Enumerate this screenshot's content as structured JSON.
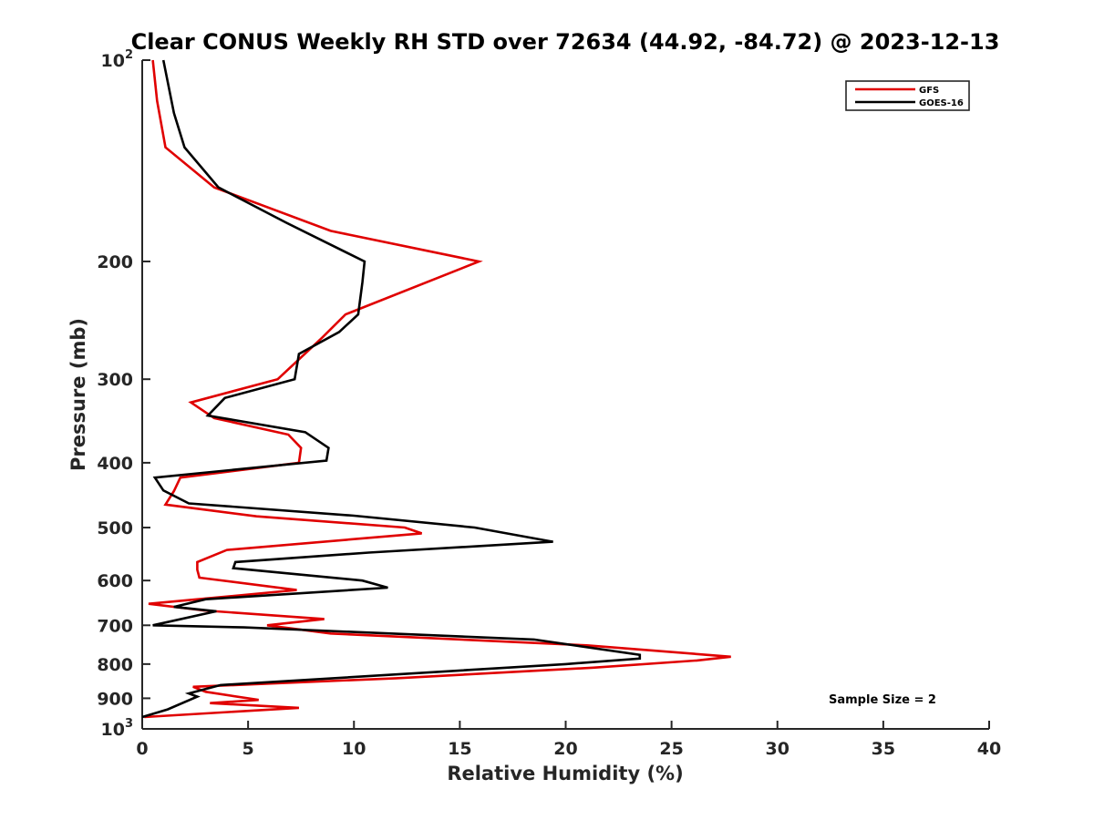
{
  "chart_data": {
    "type": "line",
    "title": "Clear CONUS Weekly RH STD over 72634 (44.92, -84.72) @ 2023-12-13",
    "xlabel": "Relative Humidity (%)",
    "ylabel": "Pressure (mb)",
    "xlim": [
      0,
      40
    ],
    "ylim": [
      100,
      1000
    ],
    "yscale": "log",
    "y_reversed": true,
    "grid": false,
    "legend_position": "top-right",
    "x_ticks": [
      "0",
      "5",
      "10",
      "15",
      "20",
      "25",
      "30",
      "35",
      "40"
    ],
    "y_ticks": [
      {
        "value": 100,
        "base": "10",
        "exp": "2"
      },
      {
        "value": 200,
        "label": "200"
      },
      {
        "value": 300,
        "label": "300"
      },
      {
        "value": 400,
        "label": "400"
      },
      {
        "value": 500,
        "label": "500"
      },
      {
        "value": 600,
        "label": "600"
      },
      {
        "value": 700,
        "label": "700"
      },
      {
        "value": 800,
        "label": "800"
      },
      {
        "value": 900,
        "label": "900"
      },
      {
        "value": 1000,
        "base": "10",
        "exp": "3"
      }
    ],
    "annotation": "Sample Size = 2",
    "series": [
      {
        "name": "GFS",
        "color": "#e00000",
        "points": [
          [
            0.5,
            100
          ],
          [
            0.7,
            115
          ],
          [
            1.1,
            135
          ],
          [
            3.4,
            155
          ],
          [
            8.9,
            180
          ],
          [
            15.9,
            200
          ],
          [
            9.6,
            240
          ],
          [
            8.5,
            260
          ],
          [
            6.4,
            300
          ],
          [
            2.3,
            325
          ],
          [
            3.4,
            343
          ],
          [
            6.9,
            363
          ],
          [
            7.5,
            380
          ],
          [
            7.4,
            400
          ],
          [
            1.8,
            421
          ],
          [
            1.5,
            441
          ],
          [
            1.1,
            462
          ],
          [
            5.4,
            481
          ],
          [
            12.4,
            500
          ],
          [
            13.2,
            510
          ],
          [
            4.0,
            540
          ],
          [
            2.6,
            563
          ],
          [
            2.6,
            578
          ],
          [
            2.7,
            594
          ],
          [
            7.3,
            620
          ],
          [
            0.3,
            650
          ],
          [
            2.9,
            665
          ],
          [
            8.6,
            685
          ],
          [
            5.9,
            700
          ],
          [
            8.9,
            720
          ],
          [
            21.0,
            750
          ],
          [
            27.8,
            780
          ],
          [
            26.2,
            790
          ],
          [
            21.3,
            810
          ],
          [
            12.0,
            840
          ],
          [
            2.4,
            865
          ],
          [
            3.0,
            880
          ],
          [
            5.5,
            905
          ],
          [
            3.2,
            915
          ],
          [
            7.4,
            930
          ],
          [
            0.1,
            960
          ]
        ]
      },
      {
        "name": "GOES-16",
        "color": "#000000",
        "points": [
          [
            1.0,
            100
          ],
          [
            1.5,
            120
          ],
          [
            2.0,
            135
          ],
          [
            3.6,
            155
          ],
          [
            6.8,
            175
          ],
          [
            10.5,
            200
          ],
          [
            10.4,
            215
          ],
          [
            10.2,
            240
          ],
          [
            9.3,
            255
          ],
          [
            7.4,
            275
          ],
          [
            7.2,
            300
          ],
          [
            3.9,
            320
          ],
          [
            3.1,
            340
          ],
          [
            7.7,
            360
          ],
          [
            8.8,
            380
          ],
          [
            8.7,
            397
          ],
          [
            0.6,
            421
          ],
          [
            1.0,
            440
          ],
          [
            2.2,
            460
          ],
          [
            10.0,
            480
          ],
          [
            15.7,
            500
          ],
          [
            19.4,
            525
          ],
          [
            10.7,
            545
          ],
          [
            4.4,
            563
          ],
          [
            4.3,
            575
          ],
          [
            10.4,
            600
          ],
          [
            11.6,
            615
          ],
          [
            3.0,
            640
          ],
          [
            1.5,
            657
          ],
          [
            3.5,
            667
          ],
          [
            0.5,
            700
          ],
          [
            4.8,
            705
          ],
          [
            18.5,
            735
          ],
          [
            23.5,
            775
          ],
          [
            23.5,
            785
          ],
          [
            20.0,
            800
          ],
          [
            3.7,
            860
          ],
          [
            2.2,
            885
          ],
          [
            2.6,
            895
          ],
          [
            1.2,
            935
          ],
          [
            0.0,
            960
          ]
        ]
      }
    ]
  }
}
